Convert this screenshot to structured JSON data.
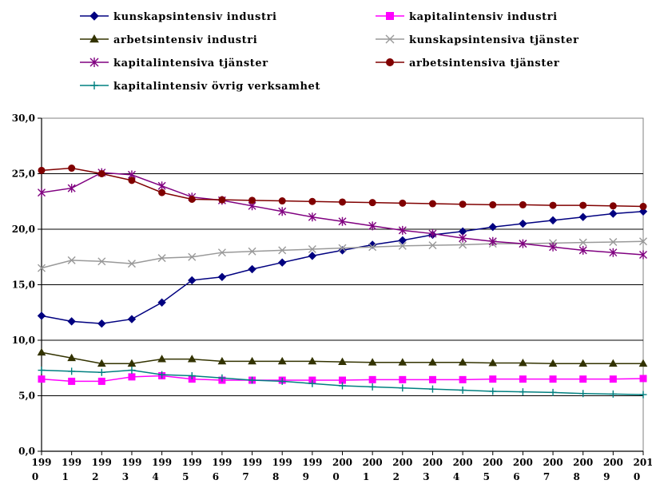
{
  "chart_data": {
    "type": "line",
    "title": "",
    "xlabel": "",
    "ylabel": "",
    "ylim": [
      0,
      30
    ],
    "yticks": [
      "0,0",
      "5,0",
      "10,0",
      "15,0",
      "20,0",
      "25,0",
      "30,0"
    ],
    "ytick_values": [
      0,
      5,
      10,
      15,
      20,
      25,
      30
    ],
    "x_top": [
      "199",
      "199",
      "199",
      "199",
      "199",
      "199",
      "199",
      "199",
      "199",
      "199",
      "200",
      "200",
      "200",
      "200",
      "200",
      "200",
      "200",
      "200",
      "200",
      "200",
      "201"
    ],
    "x_bottom": [
      "0",
      "1",
      "2",
      "3",
      "4",
      "5",
      "6",
      "7",
      "8",
      "9",
      "0",
      "1",
      "2",
      "3",
      "4",
      "5",
      "6",
      "7",
      "8",
      "9",
      "0"
    ],
    "categories": [
      "1990",
      "1991",
      "1992",
      "1993",
      "1994",
      "1995",
      "1996",
      "1997",
      "1998",
      "1999",
      "2000",
      "2001",
      "2002",
      "2003",
      "2004",
      "2005",
      "2006",
      "2007",
      "2008",
      "2009",
      "2010"
    ],
    "grid": true,
    "legend_position": "top",
    "series": [
      {
        "name": "kunskapsintensiv industri",
        "color": "#000080",
        "marker": "diamond",
        "values": [
          12.2,
          11.7,
          11.5,
          11.9,
          13.4,
          15.4,
          15.7,
          16.4,
          17.0,
          17.6,
          18.1,
          18.6,
          19.0,
          19.5,
          19.8,
          20.2,
          20.5,
          20.8,
          21.1,
          21.4,
          21.6
        ]
      },
      {
        "name": "kapitalintensiv industri",
        "color": "#FF00FF",
        "marker": "square",
        "values": [
          6.5,
          6.3,
          6.3,
          6.7,
          6.8,
          6.5,
          6.4,
          6.4,
          6.4,
          6.4,
          6.4,
          6.45,
          6.45,
          6.45,
          6.45,
          6.5,
          6.5,
          6.5,
          6.5,
          6.5,
          6.55
        ]
      },
      {
        "name": "arbetsintensiv industri",
        "color": "#333300",
        "marker": "triangle",
        "values": [
          8.9,
          8.4,
          7.9,
          7.9,
          8.3,
          8.3,
          8.1,
          8.1,
          8.1,
          8.1,
          8.05,
          8.0,
          8.0,
          8.0,
          8.0,
          7.95,
          7.95,
          7.9,
          7.9,
          7.9,
          7.9
        ]
      },
      {
        "name": "kunskapsintensiva tjänster",
        "color": "#999999",
        "marker": "x",
        "values": [
          16.5,
          17.2,
          17.1,
          16.9,
          17.4,
          17.5,
          17.9,
          18.0,
          18.1,
          18.2,
          18.3,
          18.4,
          18.5,
          18.55,
          18.6,
          18.7,
          18.7,
          18.75,
          18.8,
          18.85,
          18.9
        ]
      },
      {
        "name": "kapitalintensiva tjänster",
        "color": "#800080",
        "marker": "star",
        "values": [
          23.3,
          23.7,
          25.1,
          24.9,
          23.9,
          22.9,
          22.6,
          22.1,
          21.6,
          21.1,
          20.7,
          20.3,
          19.9,
          19.6,
          19.2,
          18.9,
          18.7,
          18.4,
          18.1,
          17.9,
          17.7
        ]
      },
      {
        "name": "arbetsintensiva tjänster",
        "color": "#800000",
        "marker": "circle",
        "values": [
          25.3,
          25.5,
          25.0,
          24.4,
          23.3,
          22.7,
          22.65,
          22.6,
          22.55,
          22.5,
          22.45,
          22.4,
          22.35,
          22.3,
          22.25,
          22.2,
          22.2,
          22.15,
          22.15,
          22.1,
          22.05
        ]
      },
      {
        "name": "kapitalintensiv övrig verksamhet",
        "color": "#008080",
        "marker": "plus",
        "values": [
          7.3,
          7.2,
          7.1,
          7.3,
          6.9,
          6.8,
          6.6,
          6.4,
          6.3,
          6.1,
          5.9,
          5.8,
          5.7,
          5.6,
          5.5,
          5.4,
          5.35,
          5.3,
          5.2,
          5.15,
          5.1
        ]
      }
    ]
  }
}
